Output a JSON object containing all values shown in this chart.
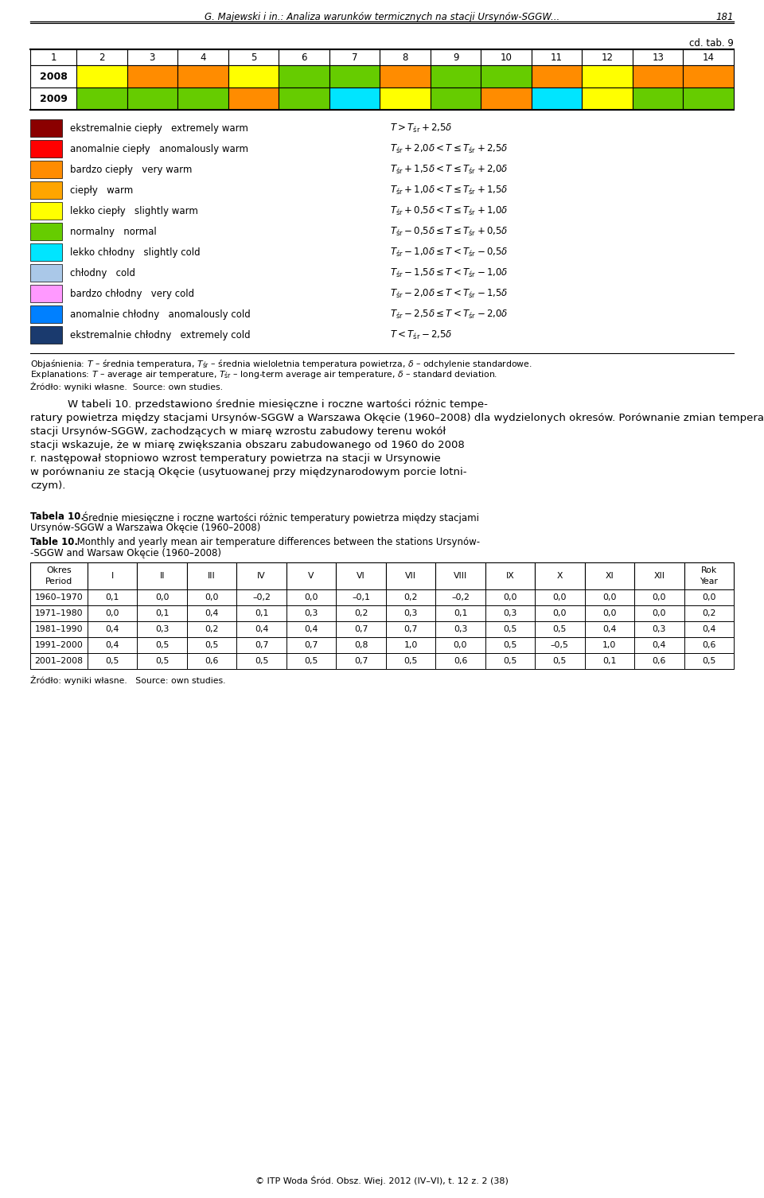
{
  "header_title": "G. Majewski i in.: Analiza warunków termicznych na stacji Ursynów-SGGW...",
  "header_page": "181",
  "cd_tab": "cd. tab. 9",
  "col_headers": [
    "1",
    "2",
    "3",
    "4",
    "5",
    "6",
    "7",
    "8",
    "9",
    "10",
    "11",
    "12",
    "13",
    "14"
  ],
  "row_labels": [
    "2008",
    "2009"
  ],
  "row_2008_colors": [
    "#ffff00",
    "#ff8c00",
    "#ff8c00",
    "#ffff00",
    "#66cc00",
    "#66cc00",
    "#ff8c00",
    "#66cc00",
    "#66cc00",
    "#ff8c00",
    "#ffff00",
    "#ff8c00",
    "#ff8c00"
  ],
  "row_2009_colors": [
    "#66cc00",
    "#66cc00",
    "#66cc00",
    "#ff8c00",
    "#66cc00",
    "#00e5ff",
    "#ffff00",
    "#66cc00",
    "#ff8c00",
    "#00e5ff",
    "#ffff00",
    "#66cc00",
    "#66cc00"
  ],
  "legend": [
    {
      "color": "#8b0000",
      "pl": "ekstremalnie ciepły",
      "en": "extremely warm",
      "formula": "$T > T_{\\mathrm{śr}} + 2{,}5\\delta$"
    },
    {
      "color": "#ff0000",
      "pl": "anomalnie ciepły",
      "en": "anomalously warm",
      "formula": "$T_{\\mathrm{śr}} + 2{,}0\\delta < T \\leq T_{\\mathrm{śr}} + 2{,}5\\delta$"
    },
    {
      "color": "#ff8c00",
      "pl": "bardzo ciepły",
      "en": "very warm",
      "formula": "$T_{\\mathrm{śr}} + 1{,}5\\delta < T \\leq T_{\\mathrm{śr}} + 2{,}0\\delta$"
    },
    {
      "color": "#ffa500",
      "pl": "ciepły",
      "en": "warm",
      "formula": "$T_{\\mathrm{śr}} + 1{,}0\\delta < T \\leq T_{\\mathrm{śr}} + 1{,}5\\delta$"
    },
    {
      "color": "#ffff00",
      "pl": "lekko ciepły",
      "en": "slightly warm",
      "formula": "$T_{\\mathrm{śr}} + 0{,}5\\delta < T \\leq T_{\\mathrm{śr}} + 1{,}0\\delta$"
    },
    {
      "color": "#66cc00",
      "pl": "normalny",
      "en": "normal",
      "formula": "$T_{\\mathrm{śr}} - 0{,}5\\delta \\leq T \\leq T_{\\mathrm{śr}} + 0{,}5\\delta$"
    },
    {
      "color": "#00e5ff",
      "pl": "lekko chłodny",
      "en": "slightly cold",
      "formula": "$T_{\\mathrm{śr}} - 1{,}0\\delta \\leq T < T_{\\mathrm{śr}} - 0{,}5\\delta$"
    },
    {
      "color": "#aac8e8",
      "pl": "chłodny",
      "en": "cold",
      "formula": "$T_{\\mathrm{śr}} - 1{,}5\\delta \\leq T < T_{\\mathrm{śr}} - 1{,}0\\delta$"
    },
    {
      "color": "#ff99ff",
      "pl": "bardzo chłodny",
      "en": "very cold",
      "formula": "$T_{\\mathrm{śr}} - 2{,}0\\delta \\leq T < T_{\\mathrm{śr}} - 1{,}5\\delta$"
    },
    {
      "color": "#0080ff",
      "pl": "anomalnie chłodny",
      "en": "anomalously cold",
      "formula": "$T_{\\mathrm{śr}} - 2{,}5\\delta \\leq T < T_{\\mathrm{śr}} - 2{,}0\\delta$"
    },
    {
      "color": "#1a3a6e",
      "pl": "ekstremalnie chłodny",
      "en": "extremely cold",
      "formula": "$T < T_{\\mathrm{śr}} - 2{,}5\\delta$"
    }
  ],
  "note_pl": "Objaśnienia: $T$ – średnia temperatura, $T_{\\mathrm{śr}}$ – średnia wieloletnia temperatura powietrza, $\\delta$ – odchylenie standardowe.",
  "note_en": "Explanations: $T$ – average air temperature, $T_{\\mathrm{śr}}$ – long-term average air temperature, $\\delta$ – standard deviation.",
  "source1": "Źródło: wyniki własne.  Source: own studies.",
  "body_text_indent": "    W tabeli 10. przedstawiono średnie miesięczne i roczne wartości różnic tempe-",
  "body_text_rest": [
    "ratury powietrza między stacjami Ursynów-SGGW a Warszawa Okęcie (1960–2008) dla wydzielonych okresów. Porównanie zmian temperatury powietrza na",
    "stacji Ursynów-SGGW, zachodzących w miarę wzrostu zabudowy terenu wokół",
    "stacji wskazuje, że w miarę zwiększania obszaru zabudowanego od 1960 do 2008",
    "r. następował stopniowo wzrost temperatury powietrza na stacji w Ursynowie",
    "w porównaniu ze stacją Okęcie (usytuowanej przy międzynarodowym porcie lotni-",
    "czym)."
  ],
  "tabela10_bold": "Tabela 10.",
  "tabela10_rest_pl1": " Średnie miesięczne i roczne wartości różnic temperatury powietrza między stacjami",
  "tabela10_rest_pl2": "Ursynów-SGGW a Warszawa Okęcie (1960–2008)",
  "table10_bold": "Table 10.",
  "table10_rest_en1": " Monthly and yearly mean air temperature differences between the stations Ursynów-",
  "table10_rest_en2": "-SGGW and Warsaw Okęcie (1960–2008)",
  "table10_col_headers": [
    "Okres\nPeriod",
    "I",
    "II",
    "III",
    "IV",
    "V",
    "VI",
    "VII",
    "VIII",
    "IX",
    "X",
    "XI",
    "XII",
    "Rok\nYear"
  ],
  "table10_data": [
    [
      "1960–1970",
      "0,1",
      "0,0",
      "0,0",
      "–0,2",
      "0,0",
      "–0,1",
      "0,2",
      "–0,2",
      "0,0",
      "0,0",
      "0,0",
      "0,0",
      "0,0"
    ],
    [
      "1971–1980",
      "0,0",
      "0,1",
      "0,4",
      "0,1",
      "0,3",
      "0,2",
      "0,3",
      "0,1",
      "0,3",
      "0,0",
      "0,0",
      "0,0",
      "0,2"
    ],
    [
      "1981–1990",
      "0,4",
      "0,3",
      "0,2",
      "0,4",
      "0,4",
      "0,7",
      "0,7",
      "0,3",
      "0,5",
      "0,5",
      "0,4",
      "0,3",
      "0,4"
    ],
    [
      "1991–2000",
      "0,4",
      "0,5",
      "0,5",
      "0,7",
      "0,7",
      "0,8",
      "1,0",
      "0,0",
      "0,5",
      "–0,5",
      "1,0",
      "0,4",
      "0,6"
    ],
    [
      "2001–2008",
      "0,5",
      "0,5",
      "0,6",
      "0,5",
      "0,5",
      "0,7",
      "0,5",
      "0,6",
      "0,5",
      "0,5",
      "0,1",
      "0,6",
      "0,5"
    ]
  ],
  "source2": "Źródło: wyniki własne.   Source: own studies.",
  "footer": "© ITP Woda Śród. Obsz. Wiej. 2012 (IV–VI), t. 12 z. 2 (38)"
}
